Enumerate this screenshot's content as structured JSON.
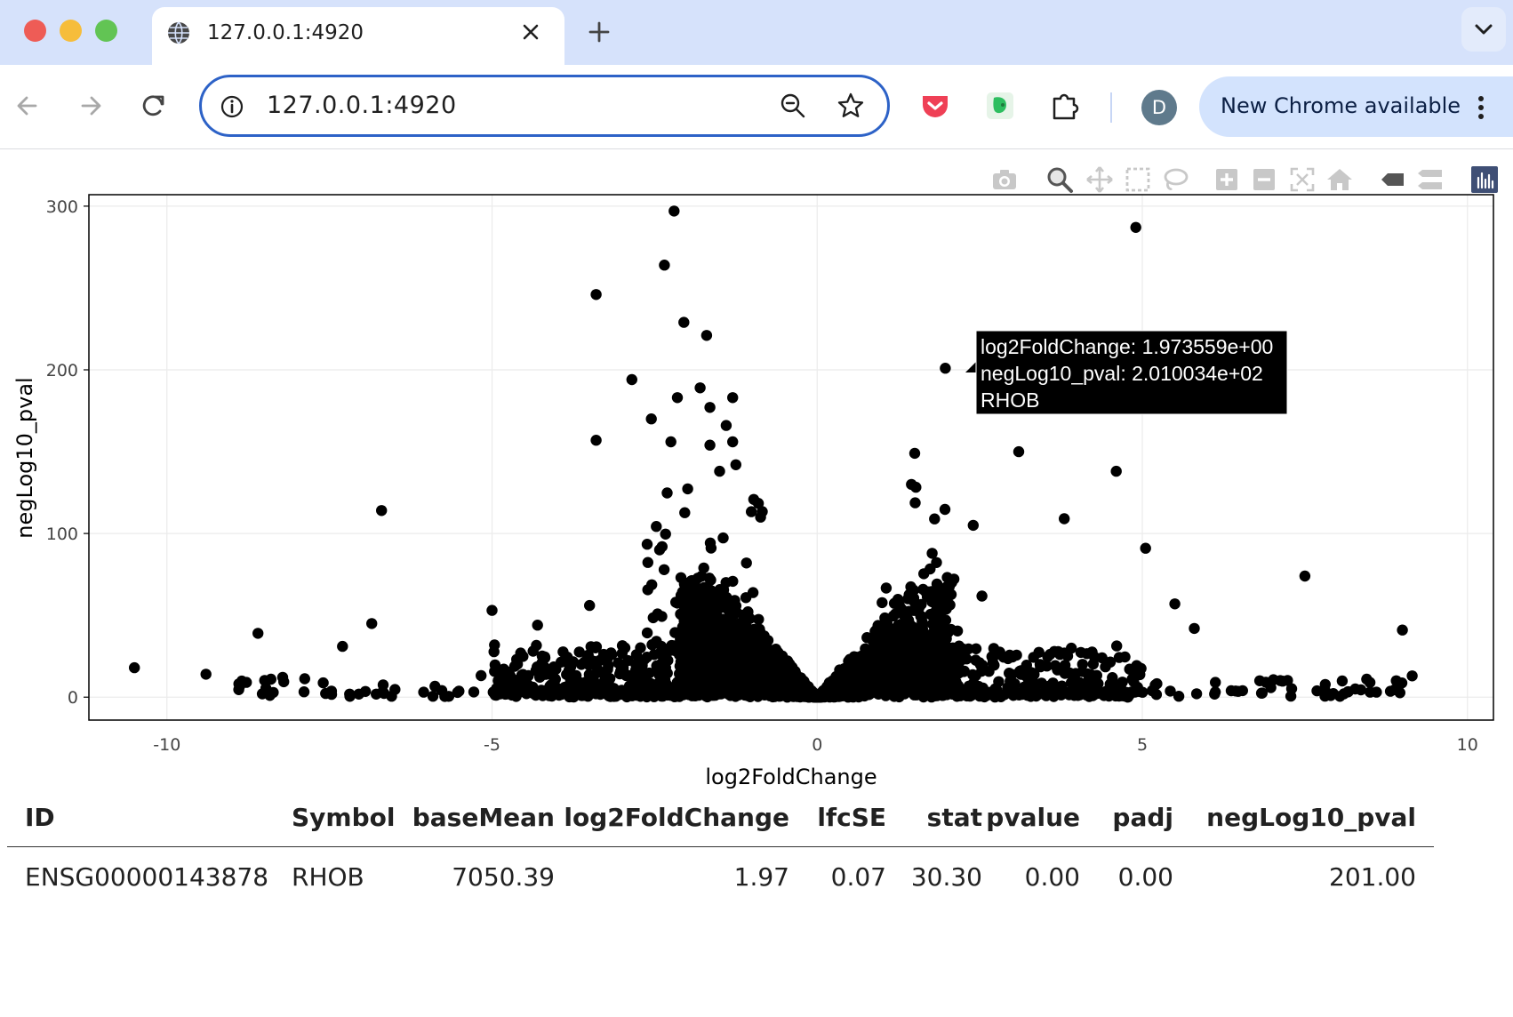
{
  "browser": {
    "tab_title": "127.0.0.1:4920",
    "url": "127.0.0.1:4920",
    "avatar_letter": "D",
    "update_label": "New Chrome available"
  },
  "modebar": {
    "icons": [
      "camera-icon",
      "zoom-icon",
      "pan-icon",
      "box-select-icon",
      "lasso-select-icon",
      "zoom-in-icon",
      "zoom-out-icon",
      "autoscale-icon",
      "reset-axes-icon",
      "hover-closest-icon",
      "hover-compare-icon",
      "plotly-logo-icon"
    ]
  },
  "chart_data": {
    "type": "scatter",
    "xlabel": "log2FoldChange",
    "ylabel": "negLog10_pval",
    "xlim": [
      -11.2,
      10.4
    ],
    "ylim": [
      -14,
      307
    ],
    "xticks": [
      -10,
      -5,
      0,
      5,
      10
    ],
    "yticks": [
      0,
      100,
      200,
      300
    ],
    "marker_color": "#000000",
    "grid": true,
    "legend": "none",
    "labeled_points": [
      {
        "x": -2.2,
        "y": 297
      },
      {
        "x": 4.9,
        "y": 287
      },
      {
        "x": -2.35,
        "y": 264
      },
      {
        "x": -3.4,
        "y": 246
      },
      {
        "x": -2.05,
        "y": 229
      },
      {
        "x": -1.7,
        "y": 221
      },
      {
        "x": 1.97,
        "y": 201
      },
      {
        "x": -2.85,
        "y": 194
      },
      {
        "x": -1.8,
        "y": 189
      },
      {
        "x": -2.15,
        "y": 183
      },
      {
        "x": -1.3,
        "y": 183
      },
      {
        "x": -1.65,
        "y": 177
      },
      {
        "x": -2.55,
        "y": 170
      },
      {
        "x": -1.4,
        "y": 166
      },
      {
        "x": -3.4,
        "y": 157
      },
      {
        "x": -2.25,
        "y": 156
      },
      {
        "x": -1.3,
        "y": 156
      },
      {
        "x": -1.65,
        "y": 154
      },
      {
        "x": 3.1,
        "y": 150
      },
      {
        "x": 1.5,
        "y": 149
      },
      {
        "x": -1.25,
        "y": 142
      },
      {
        "x": 4.6,
        "y": 138
      },
      {
        "x": -1.5,
        "y": 138
      },
      {
        "x": 1.45,
        "y": 130
      },
      {
        "x": -6.7,
        "y": 114
      },
      {
        "x": 3.8,
        "y": 109
      },
      {
        "x": 2.4,
        "y": 105
      },
      {
        "x": 5.05,
        "y": 91
      },
      {
        "x": 7.5,
        "y": 74
      },
      {
        "x": -3.5,
        "y": 56
      },
      {
        "x": 5.5,
        "y": 57
      },
      {
        "x": -5.0,
        "y": 53
      },
      {
        "x": -6.85,
        "y": 45
      },
      {
        "x": -4.3,
        "y": 44
      },
      {
        "x": 5.8,
        "y": 42
      },
      {
        "x": 9.0,
        "y": 41
      },
      {
        "x": -8.6,
        "y": 39
      },
      {
        "x": -7.3,
        "y": 31
      },
      {
        "x": -10.5,
        "y": 18
      },
      {
        "x": -9.4,
        "y": 14
      },
      {
        "x": -8.4,
        "y": 11
      },
      {
        "x": 9.15,
        "y": 13
      },
      {
        "x": 8.45,
        "y": 11
      },
      {
        "x": 8.1,
        "y": 2
      }
    ]
  },
  "tooltip": {
    "line1": "log2FoldChange:  1.973559e+00",
    "line2": "negLog10_pval: 2.010034e+02",
    "line3": "RHOB"
  },
  "table": {
    "headers": [
      "ID",
      "Symbol",
      "baseMean",
      "log2FoldChange",
      "lfcSE",
      "stat",
      "pvalue",
      "padj",
      "negLog10_pval"
    ],
    "rows": [
      [
        "ENSG00000143878",
        "RHOB",
        "7050.39",
        "1.97",
        "0.07",
        "30.30",
        "0.00",
        "0.00",
        "201.00"
      ]
    ]
  }
}
